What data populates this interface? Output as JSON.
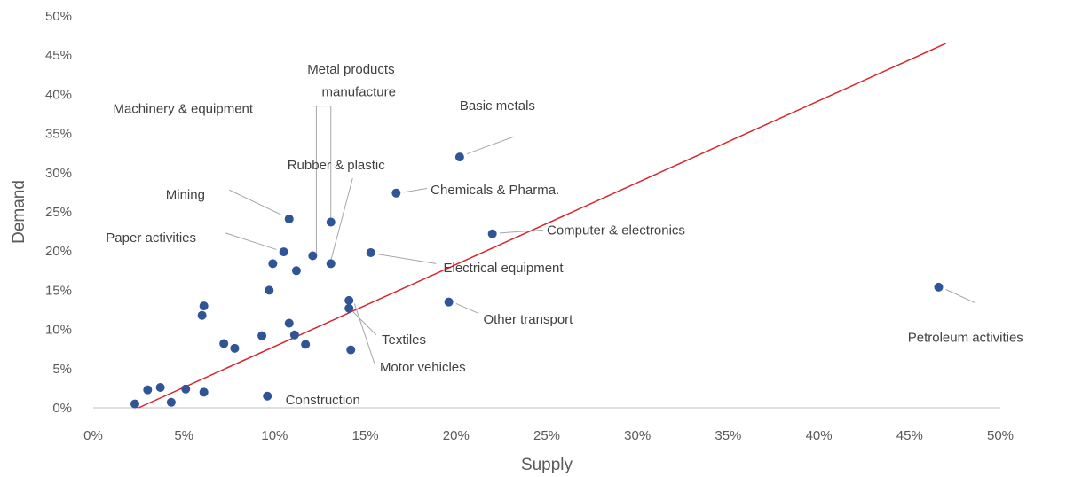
{
  "chart_data": {
    "type": "scatter",
    "xlabel": "Supply",
    "ylabel": "Demand",
    "xlim": [
      0,
      0.5
    ],
    "ylim": [
      0,
      0.5
    ],
    "x_ticks": [
      "0%",
      "5%",
      "10%",
      "15%",
      "20%",
      "25%",
      "30%",
      "35%",
      "40%",
      "45%",
      "50%"
    ],
    "y_ticks": [
      "0%",
      "5%",
      "10%",
      "15%",
      "20%",
      "25%",
      "30%",
      "35%",
      "40%",
      "45%",
      "50%"
    ],
    "grid": false,
    "marker_color": "#2F5597",
    "trendline": {
      "color": "#D9252A",
      "from": [
        0.025,
        0.0
      ],
      "to": [
        0.47,
        0.465
      ]
    },
    "points": [
      {
        "x": 0.023,
        "y": 0.005
      },
      {
        "x": 0.03,
        "y": 0.023
      },
      {
        "x": 0.037,
        "y": 0.026
      },
      {
        "x": 0.043,
        "y": 0.007
      },
      {
        "x": 0.051,
        "y": 0.024
      },
      {
        "x": 0.061,
        "y": 0.02
      },
      {
        "x": 0.06,
        "y": 0.118
      },
      {
        "x": 0.061,
        "y": 0.13
      },
      {
        "x": 0.072,
        "y": 0.082
      },
      {
        "x": 0.078,
        "y": 0.076
      },
      {
        "x": 0.093,
        "y": 0.092
      },
      {
        "x": 0.096,
        "y": 0.015
      },
      {
        "x": 0.097,
        "y": 0.15
      },
      {
        "x": 0.099,
        "y": 0.184
      },
      {
        "x": 0.105,
        "y": 0.199
      },
      {
        "x": 0.108,
        "y": 0.241
      },
      {
        "x": 0.108,
        "y": 0.108
      },
      {
        "x": 0.111,
        "y": 0.093
      },
      {
        "x": 0.112,
        "y": 0.175
      },
      {
        "x": 0.117,
        "y": 0.081
      },
      {
        "x": 0.121,
        "y": 0.194
      },
      {
        "x": 0.131,
        "y": 0.237
      },
      {
        "x": 0.131,
        "y": 0.184
      },
      {
        "x": 0.141,
        "y": 0.137
      },
      {
        "x": 0.141,
        "y": 0.127
      },
      {
        "x": 0.142,
        "y": 0.074
      },
      {
        "x": 0.153,
        "y": 0.198
      },
      {
        "x": 0.167,
        "y": 0.274
      },
      {
        "x": 0.196,
        "y": 0.135
      },
      {
        "x": 0.202,
        "y": 0.32
      },
      {
        "x": 0.22,
        "y": 0.222
      },
      {
        "x": 0.466,
        "y": 0.154
      }
    ],
    "annotations": [
      {
        "label": "Basic metals",
        "lx": 0.202,
        "ly": 0.386,
        "px": 0.202,
        "py": 0.32,
        "anchor": "start",
        "lines": [
          [
            0.206,
            0.324,
            0.232,
            0.346
          ]
        ]
      },
      {
        "label": "Metal products",
        "lx": 0.118,
        "ly": 0.432,
        "px": 0.123,
        "py": 0.194,
        "anchor": "start",
        "lines": [
          [
            0.123,
            0.195,
            0.123,
            0.385
          ]
        ]
      },
      {
        "label": "manufacture",
        "lx": 0.126,
        "ly": 0.403,
        "px": 0.0,
        "py": 0.0,
        "anchor": "start",
        "lines": []
      },
      {
        "label": "Machinery & equipment",
        "lx": 0.011,
        "ly": 0.382,
        "px": 0.131,
        "py": 0.237,
        "anchor": "start",
        "lines": [
          [
            0.121,
            0.385,
            0.131,
            0.385
          ],
          [
            0.131,
            0.385,
            0.131,
            0.241
          ]
        ]
      },
      {
        "label": "Rubber & plastic",
        "lx": 0.107,
        "ly": 0.31,
        "px": 0.131,
        "py": 0.184,
        "anchor": "start",
        "lines": [
          [
            0.143,
            0.293,
            0.131,
            0.188
          ]
        ]
      },
      {
        "label": "Chemicals & Pharma.",
        "lx": 0.186,
        "ly": 0.278,
        "px": 0.167,
        "py": 0.274,
        "anchor": "start",
        "lines": [
          [
            0.171,
            0.275,
            0.184,
            0.28
          ]
        ]
      },
      {
        "label": "Mining",
        "lx": 0.04,
        "ly": 0.272,
        "px": 0.108,
        "py": 0.241,
        "anchor": "start",
        "lines": [
          [
            0.075,
            0.278,
            0.104,
            0.246
          ]
        ]
      },
      {
        "label": "Computer & electronics",
        "lx": 0.25,
        "ly": 0.227,
        "px": 0.22,
        "py": 0.222,
        "anchor": "start",
        "lines": [
          [
            0.224,
            0.223,
            0.248,
            0.227
          ]
        ]
      },
      {
        "label": "Paper activities",
        "lx": 0.007,
        "ly": 0.217,
        "px": 0.105,
        "py": 0.199,
        "anchor": "start",
        "lines": [
          [
            0.073,
            0.223,
            0.101,
            0.202
          ]
        ]
      },
      {
        "label": "Electrical equipment",
        "lx": 0.193,
        "ly": 0.179,
        "px": 0.153,
        "py": 0.198,
        "anchor": "start",
        "lines": [
          [
            0.157,
            0.196,
            0.189,
            0.184
          ]
        ]
      },
      {
        "label": "Other transport",
        "lx": 0.215,
        "ly": 0.113,
        "px": 0.196,
        "py": 0.135,
        "anchor": "start",
        "lines": [
          [
            0.2,
            0.133,
            0.212,
            0.121
          ]
        ]
      },
      {
        "label": "Petroleum activities",
        "lx": 0.449,
        "ly": 0.09,
        "px": 0.466,
        "py": 0.154,
        "anchor": "start",
        "lines": [
          [
            0.47,
            0.151,
            0.486,
            0.134
          ]
        ]
      },
      {
        "label": "Textiles",
        "lx": 0.159,
        "ly": 0.087,
        "px": 0.141,
        "py": 0.127,
        "anchor": "start",
        "lines": [
          [
            0.143,
            0.123,
            0.156,
            0.093
          ]
        ]
      },
      {
        "label": "Motor vehicles",
        "lx": 0.158,
        "ly": 0.052,
        "px": 0.142,
        "py": 0.137,
        "anchor": "start",
        "lines": [
          [
            0.144,
            0.133,
            0.155,
            0.057
          ]
        ]
      },
      {
        "label": "Construction",
        "lx": 0.106,
        "ly": 0.01,
        "px": 0.096,
        "py": 0.015,
        "anchor": "start",
        "lines": []
      }
    ]
  }
}
